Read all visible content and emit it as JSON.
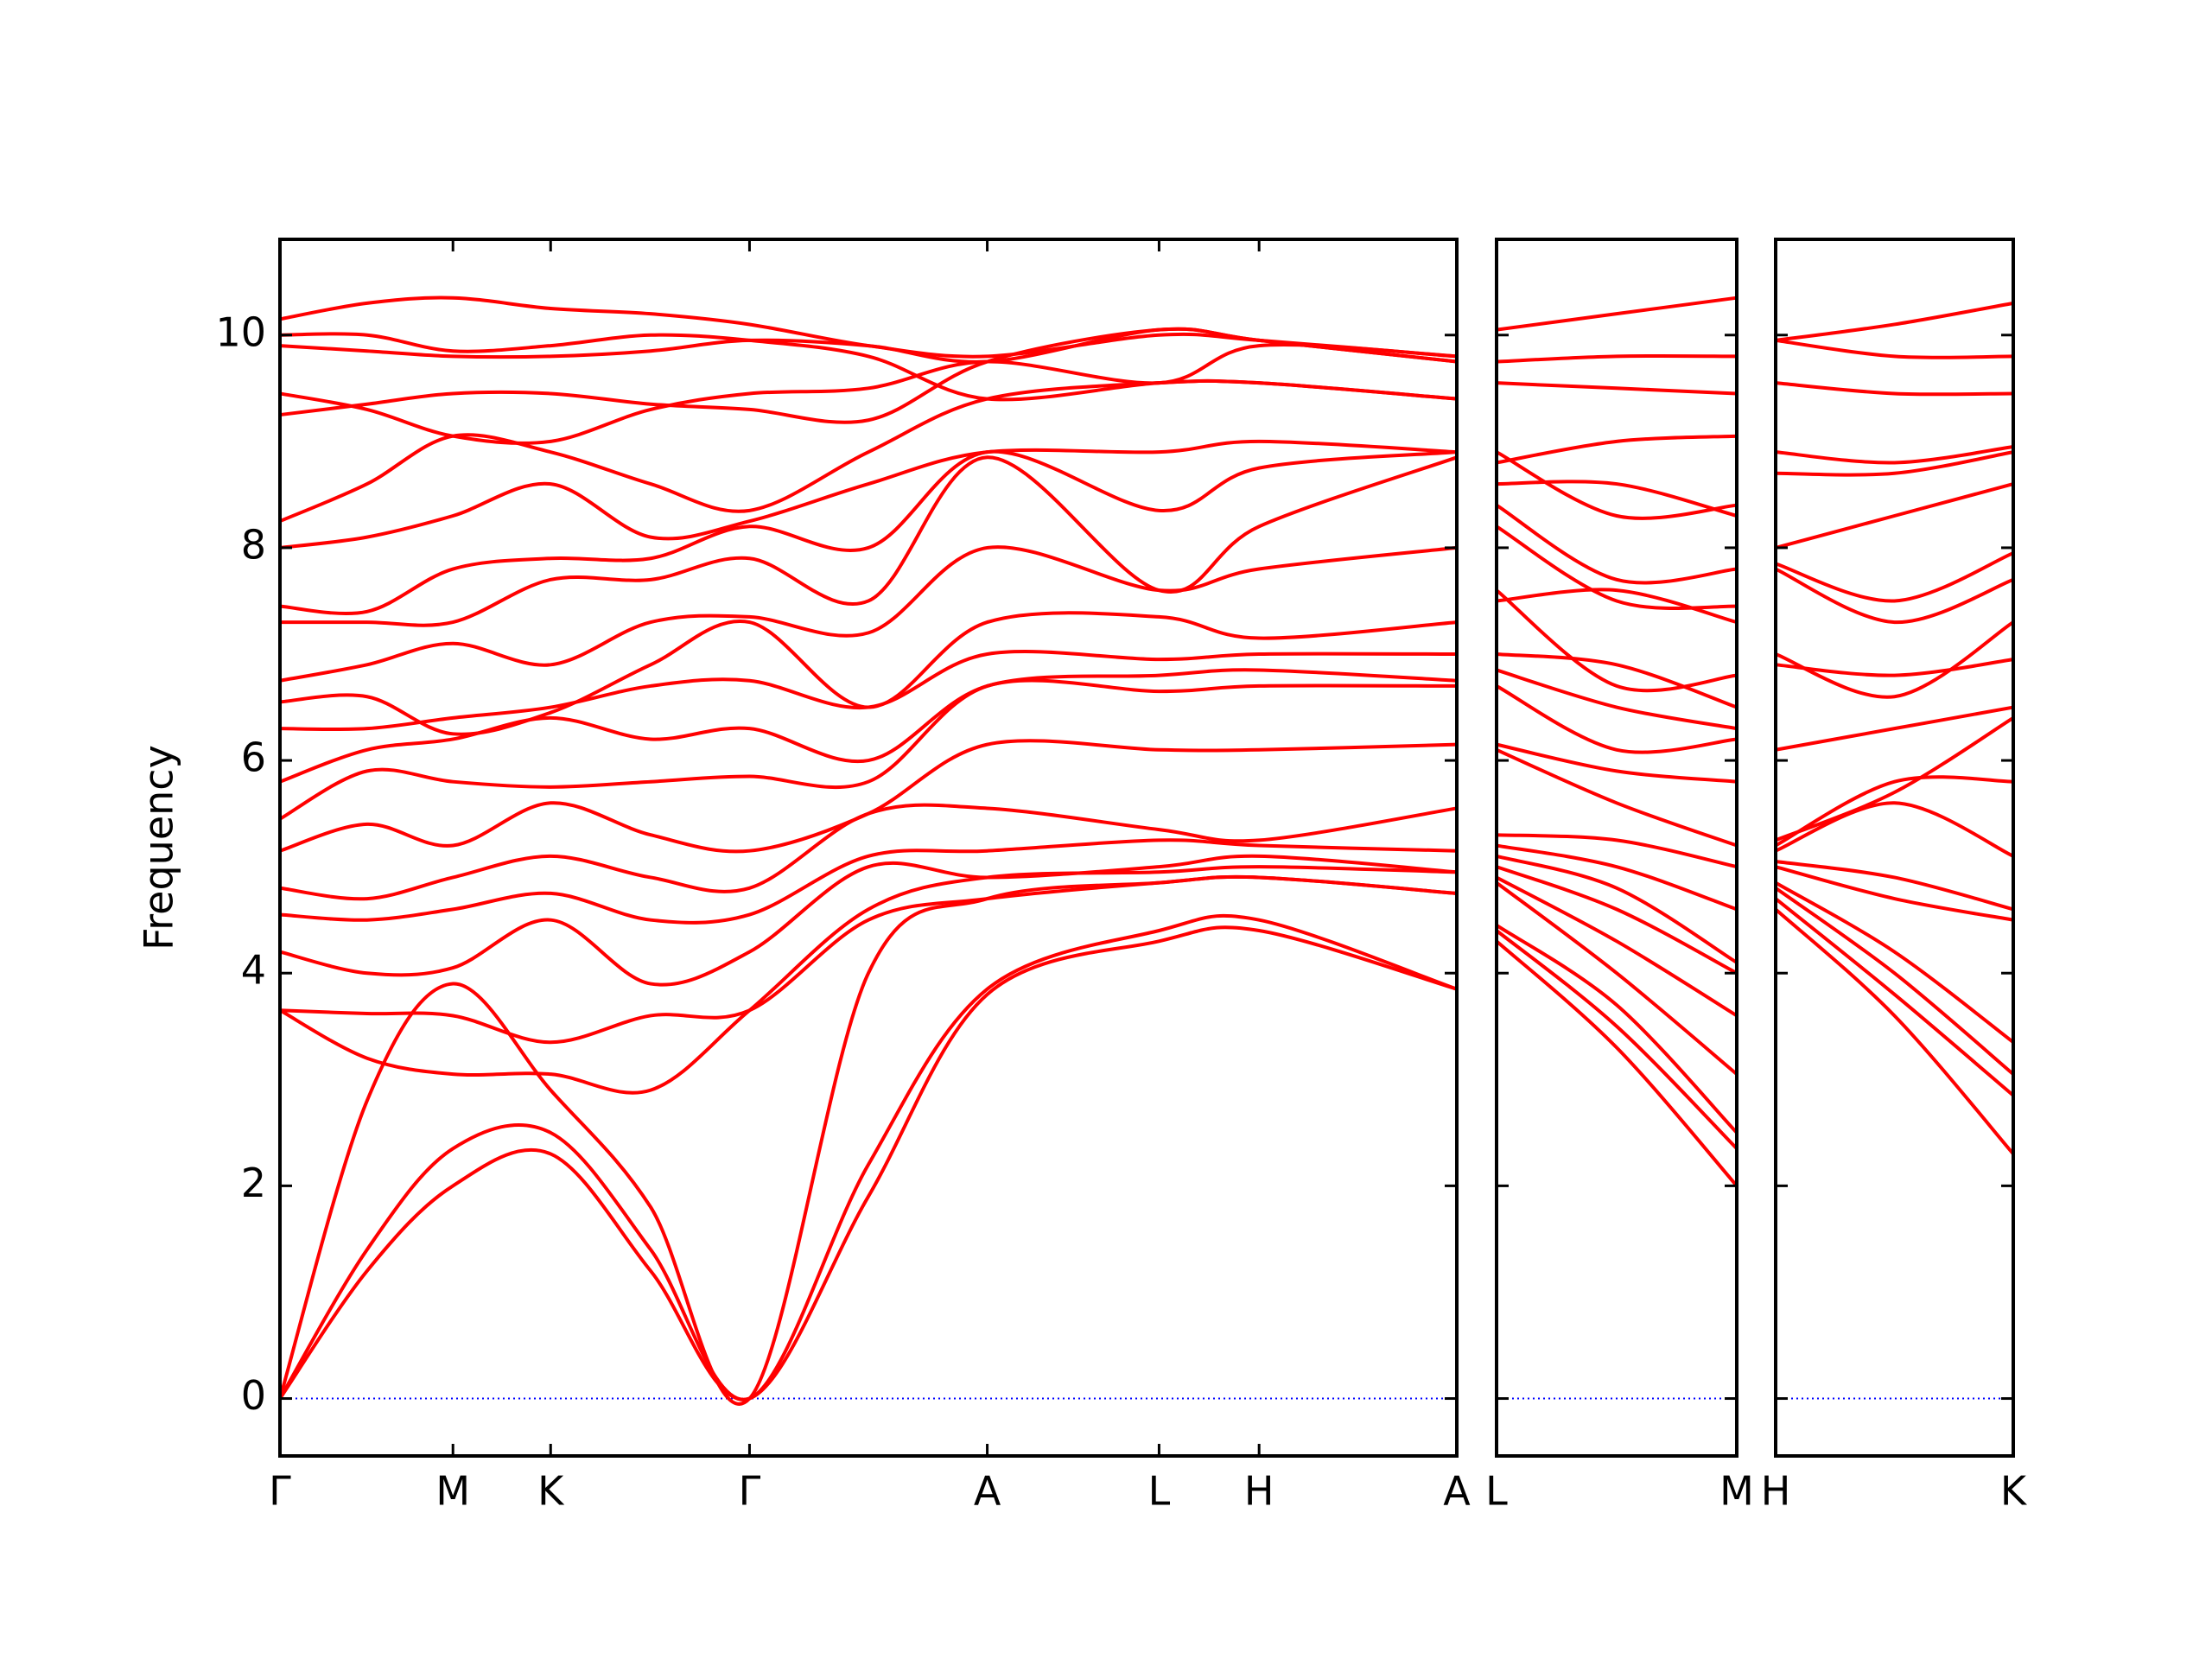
{
  "chart_data": [
    {
      "type": "line",
      "ylabel": "Frequency",
      "color": "#ff0000",
      "hline": 0,
      "hline_color": "#0000ff",
      "xlim": [
        0,
        1
      ],
      "ylim": [
        -0.54,
        10.9
      ],
      "yticks": [
        0,
        2,
        4,
        6,
        8,
        10
      ],
      "ytick_labels": true,
      "xticks": [
        {
          "value": 0,
          "label": "Γ"
        },
        {
          "value": 0.147,
          "label": "M"
        },
        {
          "value": 0.23,
          "label": "K"
        },
        {
          "value": 0.399,
          "label": "Γ"
        },
        {
          "value": 0.601,
          "label": "A"
        },
        {
          "value": 0.747,
          "label": "L"
        },
        {
          "value": 0.832,
          "label": "H"
        },
        {
          "value": 1,
          "label": "A"
        }
      ],
      "x": [
        0,
        0.074,
        0.147,
        0.23,
        0.315,
        0.399,
        0.5,
        0.601,
        0.747,
        0.832,
        1
      ],
      "series": [
        {
          "values": [
            0,
            1.2,
            2.0,
            2.3,
            1.2,
            0,
            1.9,
            3.8,
            4.3,
            4.4,
            3.85
          ]
        },
        {
          "values": [
            0,
            1.4,
            2.35,
            2.5,
            1.4,
            0,
            2.2,
            3.85,
            4.4,
            4.5,
            3.85
          ]
        },
        {
          "values": [
            0,
            2.8,
            3.9,
            2.9,
            1.8,
            0,
            4.0,
            4.7,
            4.85,
            4.9,
            4.75
          ]
        },
        {
          "values": [
            3.65,
            3.62,
            3.6,
            3.35,
            3.6,
            3.65,
            4.5,
            4.7,
            4.85,
            4.9,
            4.75
          ]
        },
        {
          "values": [
            3.65,
            3.2,
            3.05,
            3.05,
            2.9,
            3.65,
            4.6,
            4.9,
            4.95,
            5.0,
            4.95
          ]
        },
        {
          "values": [
            4.2,
            4.0,
            4.05,
            4.5,
            3.9,
            4.2,
            5.0,
            4.9,
            5.0,
            5.1,
            4.95
          ]
        },
        {
          "values": [
            4.55,
            4.5,
            4.6,
            4.75,
            4.5,
            4.55,
            5.1,
            5.15,
            5.25,
            5.2,
            5.15
          ]
        },
        {
          "values": [
            4.8,
            4.7,
            4.9,
            5.1,
            4.9,
            4.8,
            5.5,
            5.55,
            5.35,
            5.25,
            5.55
          ]
        },
        {
          "values": [
            5.15,
            5.4,
            5.2,
            5.6,
            5.3,
            5.15,
            5.5,
            6.15,
            6.1,
            6.1,
            6.15
          ]
        },
        {
          "values": [
            5.45,
            5.9,
            5.8,
            5.75,
            5.8,
            5.85,
            5.8,
            6.7,
            6.65,
            6.7,
            6.7
          ]
        },
        {
          "values": [
            5.8,
            6.1,
            6.2,
            6.4,
            6.2,
            6.3,
            6.0,
            6.7,
            6.8,
            6.85,
            6.75
          ]
        },
        {
          "values": [
            6.3,
            6.3,
            6.4,
            6.5,
            6.7,
            6.75,
            6.5,
            7.0,
            6.95,
            7.0,
            7.0
          ]
        },
        {
          "values": [
            6.55,
            6.6,
            6.25,
            6.45,
            6.9,
            7.3,
            6.5,
            7.3,
            7.35,
            7.15,
            7.3
          ]
        },
        {
          "values": [
            6.75,
            6.9,
            7.1,
            6.9,
            7.3,
            7.35,
            7.2,
            8.0,
            7.6,
            7.8,
            8.0
          ]
        },
        {
          "values": [
            7.3,
            7.3,
            7.3,
            7.7,
            7.7,
            7.9,
            7.5,
            8.85,
            7.6,
            8.2,
            8.85
          ]
        },
        {
          "values": [
            7.45,
            7.4,
            7.8,
            7.9,
            7.9,
            8.2,
            8.0,
            8.9,
            8.35,
            8.75,
            8.9
          ]
        },
        {
          "values": [
            8.0,
            8.1,
            8.3,
            8.6,
            8.1,
            8.25,
            8.6,
            8.9,
            8.9,
            9.0,
            8.9
          ]
        },
        {
          "values": [
            8.25,
            8.6,
            9.05,
            8.9,
            8.6,
            8.35,
            8.9,
            9.4,
            9.55,
            9.55,
            9.4
          ]
        },
        {
          "values": [
            9.25,
            9.35,
            9.45,
            9.45,
            9.35,
            9.3,
            9.2,
            9.75,
            10.05,
            9.95,
            9.75
          ]
        },
        {
          "values": [
            9.45,
            9.3,
            9.05,
            9.0,
            9.3,
            9.45,
            9.5,
            9.75,
            9.55,
            9.9,
            9.8
          ]
        },
        {
          "values": [
            9.9,
            9.85,
            9.8,
            9.8,
            9.85,
            9.95,
            9.9,
            9.75,
            10.05,
            9.95,
            9.75
          ]
        },
        {
          "values": [
            10.0,
            10.0,
            9.85,
            9.9,
            10.0,
            9.95,
            9.8,
            9.4,
            9.55,
            9.55,
            9.4
          ]
        },
        {
          "values": [
            10.15,
            10.3,
            10.35,
            10.25,
            10.2,
            10.1,
            9.9,
            9.8,
            10.0,
            9.95,
            9.8
          ]
        }
      ]
    },
    {
      "type": "line",
      "color": "#ff0000",
      "hline": 0,
      "hline_color": "#0000ff",
      "xlim": [
        0,
        1
      ],
      "ylim": [
        -0.54,
        10.9
      ],
      "yticks": [
        0,
        2,
        4,
        6,
        8,
        10
      ],
      "ytick_labels": false,
      "xticks": [
        {
          "value": 0,
          "label": "L"
        },
        {
          "value": 1,
          "label": "M"
        }
      ],
      "x": [
        0,
        0.5,
        1
      ],
      "series": [
        {
          "values": [
            4.3,
            3.3,
            2.0
          ]
        },
        {
          "values": [
            4.4,
            3.5,
            2.35
          ]
        },
        {
          "values": [
            4.45,
            3.7,
            2.5
          ]
        },
        {
          "values": [
            4.85,
            4.0,
            3.05
          ]
        },
        {
          "values": [
            4.9,
            4.3,
            3.6
          ]
        },
        {
          "values": [
            5.0,
            4.6,
            4.0
          ]
        },
        {
          "values": [
            5.1,
            4.8,
            4.1
          ]
        },
        {
          "values": [
            5.2,
            5.0,
            4.6
          ]
        },
        {
          "values": [
            5.3,
            5.25,
            5.0
          ]
        },
        {
          "values": [
            6.1,
            5.6,
            5.2
          ]
        },
        {
          "values": [
            6.15,
            5.9,
            5.8
          ]
        },
        {
          "values": [
            6.7,
            6.1,
            6.2
          ]
        },
        {
          "values": [
            6.85,
            6.5,
            6.3
          ]
        },
        {
          "values": [
            7.0,
            6.9,
            6.5
          ]
        },
        {
          "values": [
            7.6,
            6.7,
            6.8
          ]
        },
        {
          "values": [
            7.5,
            7.6,
            7.3
          ]
        },
        {
          "values": [
            8.2,
            7.5,
            7.45
          ]
        },
        {
          "values": [
            8.4,
            7.7,
            7.8
          ]
        },
        {
          "values": [
            8.6,
            8.6,
            8.3
          ]
        },
        {
          "values": [
            8.9,
            8.3,
            8.4
          ]
        },
        {
          "values": [
            8.8,
            9.0,
            9.05
          ]
        },
        {
          "values": [
            9.55,
            9.5,
            9.45
          ]
        },
        {
          "values": [
            9.75,
            9.8,
            9.8
          ]
        },
        {
          "values": [
            10.05,
            10.2,
            10.35
          ]
        }
      ]
    },
    {
      "type": "line",
      "color": "#ff0000",
      "hline": 0,
      "hline_color": "#0000ff",
      "xlim": [
        0,
        1
      ],
      "ylim": [
        -0.54,
        10.9
      ],
      "yticks": [
        0,
        2,
        4,
        6,
        8,
        10
      ],
      "ytick_labels": false,
      "xticks": [
        {
          "value": 0,
          "label": "H"
        },
        {
          "value": 1,
          "label": "K"
        }
      ],
      "x": [
        0,
        0.5,
        1
      ],
      "series": [
        {
          "values": [
            4.6,
            3.6,
            2.3
          ]
        },
        {
          "values": [
            4.7,
            3.8,
            2.85
          ]
        },
        {
          "values": [
            4.8,
            4.0,
            3.05
          ]
        },
        {
          "values": [
            4.85,
            4.2,
            3.35
          ]
        },
        {
          "values": [
            5.0,
            4.7,
            4.5
          ]
        },
        {
          "values": [
            5.05,
            4.9,
            4.6
          ]
        },
        {
          "values": [
            5.15,
            5.6,
            5.1
          ]
        },
        {
          "values": [
            5.2,
            5.8,
            5.8
          ]
        },
        {
          "values": [
            5.25,
            5.7,
            6.4
          ]
        },
        {
          "values": [
            6.1,
            6.3,
            6.5
          ]
        },
        {
          "values": [
            6.9,
            6.8,
            6.95
          ]
        },
        {
          "values": [
            7.0,
            6.6,
            7.3
          ]
        },
        {
          "values": [
            7.8,
            7.3,
            7.7
          ]
        },
        {
          "values": [
            7.85,
            7.5,
            7.95
          ]
        },
        {
          "values": [
            8.0,
            8.3,
            8.6
          ]
        },
        {
          "values": [
            8.7,
            8.7,
            8.9
          ]
        },
        {
          "values": [
            8.9,
            8.8,
            8.95
          ]
        },
        {
          "values": [
            9.55,
            9.45,
            9.45
          ]
        },
        {
          "values": [
            9.95,
            9.8,
            9.8
          ]
        },
        {
          "values": [
            9.95,
            10.1,
            10.3
          ]
        }
      ]
    }
  ]
}
